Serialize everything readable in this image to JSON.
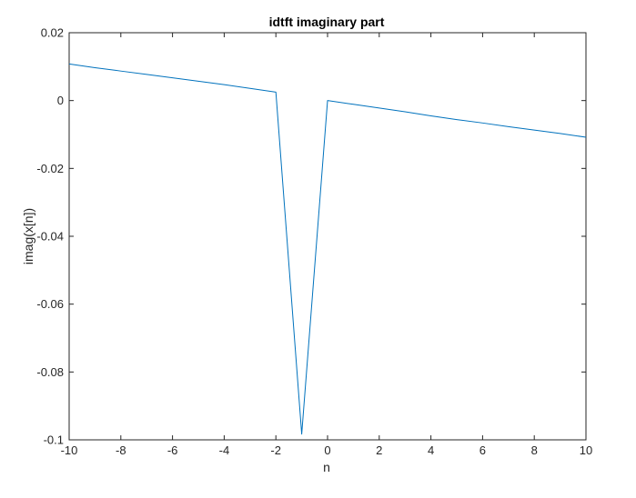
{
  "chart_data": {
    "type": "line",
    "title": "idtft imaginary part",
    "xlabel": "n",
    "ylabel": "imag(x[n])",
    "xlim": [
      -10,
      10
    ],
    "ylim": [
      -0.1,
      0.02
    ],
    "xticks": [
      -10,
      -8,
      -6,
      -4,
      -2,
      0,
      2,
      4,
      6,
      8,
      10
    ],
    "xtick_labels": [
      "-10",
      "-8",
      "-6",
      "-4",
      "-2",
      "0",
      "2",
      "4",
      "6",
      "8",
      "10"
    ],
    "yticks": [
      0.02,
      0,
      -0.02,
      -0.04,
      -0.06,
      -0.08,
      -0.1
    ],
    "ytick_labels": [
      "0.02",
      "0",
      "-0.02",
      "-0.04",
      "-0.06",
      "-0.08",
      "-0.1"
    ],
    "grid": false,
    "box": true,
    "series": [
      {
        "color": "#0072bd",
        "x": [
          -10,
          -9,
          -8,
          -7,
          -6,
          -5,
          -4,
          -3,
          -2,
          -1,
          0,
          1,
          2,
          3,
          4,
          5,
          6,
          7,
          8,
          9,
          10
        ],
        "y": [
          0.0108,
          0.0097,
          0.0087,
          0.0077,
          0.0067,
          0.0057,
          0.0047,
          0.0036,
          0.0025,
          -0.0983,
          0.0,
          -0.0011,
          -0.0022,
          -0.0033,
          -0.0045,
          -0.0056,
          -0.0066,
          -0.0077,
          -0.0087,
          -0.0097,
          -0.0108
        ]
      }
    ]
  }
}
